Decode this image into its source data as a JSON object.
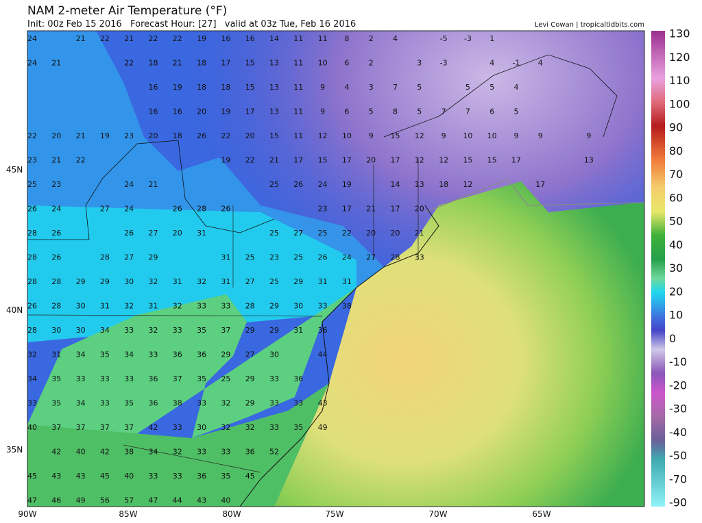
{
  "map": {
    "title": "NAM 2-meter Air Temperature (°F)",
    "subtitle": "Init: 00z Feb 15 2016   Forecast Hour: [27]   valid at 03z Tue, Feb 16 2016",
    "credit": "Levi Cowan | tropicaltidbits.com",
    "lat_labels": [
      "45N",
      "40N",
      "35N"
    ],
    "lon_labels": [
      "90W",
      "85W",
      "80W",
      "75W",
      "70W",
      "65W"
    ],
    "colorbar": [
      130,
      120,
      110,
      100,
      90,
      80,
      70,
      60,
      50,
      40,
      30,
      20,
      10,
      0,
      -10,
      -20,
      -30,
      -40,
      -50,
      -70,
      -90
    ],
    "grid": [
      [
        24,
        null,
        21,
        22,
        21,
        22,
        22,
        19,
        16,
        16,
        14,
        11,
        11,
        8,
        2,
        4,
        null,
        -5,
        -3,
        1
      ],
      [
        24,
        21,
        null,
        null,
        22,
        18,
        21,
        18,
        17,
        15,
        13,
        11,
        10,
        6,
        2,
        null,
        3,
        -3,
        null,
        4,
        -1,
        4
      ],
      [
        null,
        null,
        null,
        null,
        null,
        16,
        19,
        18,
        18,
        15,
        13,
        11,
        9,
        4,
        3,
        7,
        5,
        null,
        5,
        5,
        4
      ],
      [
        null,
        null,
        null,
        null,
        null,
        16,
        16,
        20,
        19,
        17,
        13,
        11,
        9,
        6,
        5,
        8,
        5,
        7,
        7,
        6,
        5
      ],
      [
        22,
        20,
        21,
        19,
        23,
        20,
        18,
        26,
        22,
        20,
        15,
        11,
        12,
        10,
        9,
        15,
        12,
        9,
        10,
        10,
        9,
        9,
        null,
        9
      ],
      [
        23,
        21,
        22,
        null,
        null,
        null,
        null,
        null,
        19,
        22,
        21,
        17,
        15,
        17,
        20,
        17,
        12,
        12,
        15,
        15,
        17,
        null,
        null,
        13
      ],
      [
        25,
        23,
        null,
        null,
        24,
        21,
        null,
        null,
        null,
        null,
        25,
        26,
        24,
        19,
        null,
        14,
        13,
        18,
        12,
        null,
        null,
        17
      ],
      [
        26,
        24,
        null,
        27,
        24,
        null,
        26,
        28,
        26,
        null,
        null,
        null,
        23,
        17,
        21,
        17,
        20
      ],
      [
        28,
        26,
        null,
        null,
        26,
        27,
        20,
        31,
        null,
        null,
        25,
        27,
        25,
        22,
        20,
        20,
        21
      ],
      [
        28,
        26,
        null,
        28,
        27,
        29,
        null,
        null,
        31,
        25,
        23,
        25,
        26,
        24,
        27,
        28,
        33
      ],
      [
        28,
        28,
        29,
        29,
        30,
        32,
        31,
        32,
        31,
        27,
        25,
        29,
        31,
        31
      ],
      [
        26,
        28,
        30,
        31,
        32,
        31,
        32,
        33,
        33,
        28,
        29,
        30,
        33,
        38
      ],
      [
        28,
        30,
        30,
        34,
        33,
        32,
        33,
        35,
        37,
        29,
        29,
        31,
        36
      ],
      [
        32,
        31,
        34,
        35,
        34,
        33,
        36,
        36,
        29,
        27,
        30,
        null,
        44
      ],
      [
        34,
        35,
        33,
        33,
        33,
        36,
        37,
        35,
        25,
        29,
        33,
        36
      ],
      [
        33,
        35,
        34,
        33,
        35,
        36,
        38,
        33,
        32,
        29,
        33,
        33,
        43
      ],
      [
        40,
        37,
        37,
        37,
        37,
        42,
        33,
        30,
        32,
        32,
        33,
        35,
        49
      ],
      [
        null,
        42,
        40,
        42,
        38,
        34,
        32,
        33,
        33,
        36,
        52
      ],
      [
        45,
        43,
        43,
        45,
        40,
        33,
        33,
        36,
        35,
        45
      ],
      [
        47,
        46,
        49,
        56,
        57,
        47,
        44,
        43,
        40
      ]
    ]
  }
}
